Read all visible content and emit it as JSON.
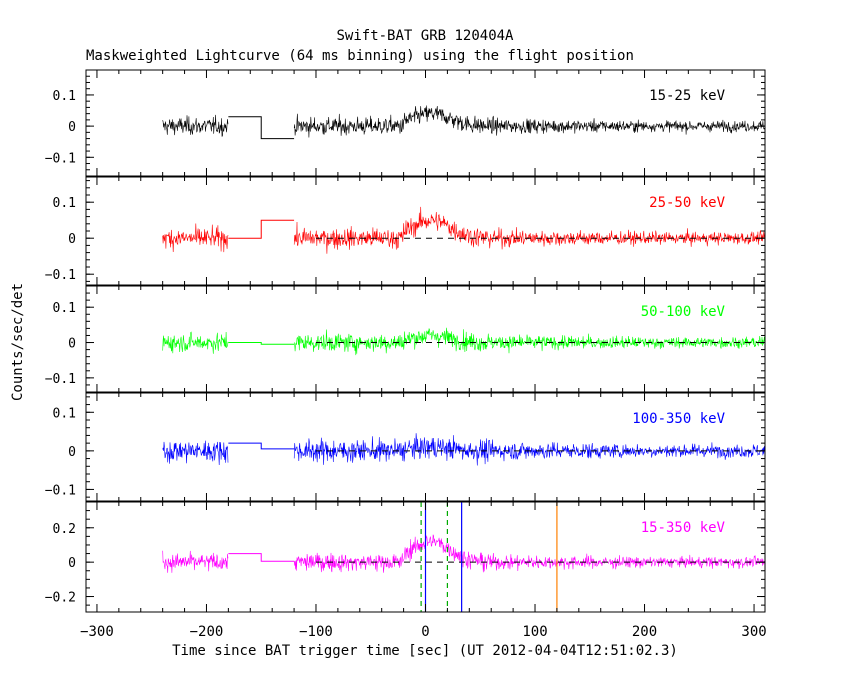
{
  "chart_data": {
    "type": "line",
    "title": "Swift-BAT GRB 120404A",
    "subtitle": "Maskweighted Lightcurve (64 ms binning) using the flight position",
    "xlabel": "Time since BAT trigger time [sec] (UT 2012-04-04T12:51:02.3)",
    "ylabel": "Counts/sec/det",
    "xlim": [
      -310,
      310
    ],
    "x_ticks": [
      -300,
      -200,
      -100,
      0,
      100,
      200,
      300
    ],
    "binning_sec": 0.064,
    "data_gap": [
      -180,
      -120
    ],
    "panels": [
      {
        "name": "15-25 keV",
        "color": "#000000",
        "ylim": [
          -0.16,
          0.18
        ],
        "yticks": [
          0.1,
          0,
          -0.1
        ],
        "yticklabels": [
          "0.1",
          "0",
          "−0.1"
        ],
        "noise_amplitude": 0.055,
        "pre_level": 0.0,
        "gap_levels": [
          0.03,
          -0.04
        ],
        "peak": 0.04,
        "show_zero_line": false
      },
      {
        "name": "25-50 keV",
        "color": "#ff0000",
        "ylim": [
          -0.13,
          0.17
        ],
        "yticks": [
          0.1,
          0,
          -0.1
        ],
        "yticklabels": [
          "0.1",
          "0",
          "−0.1"
        ],
        "noise_amplitude": 0.055,
        "pre_level": 0.0,
        "gap_levels": [
          0.0,
          0.05
        ],
        "peak": 0.05,
        "show_zero_line": true
      },
      {
        "name": "50-100 keV",
        "color": "#00ff00",
        "ylim": [
          -0.14,
          0.16
        ],
        "yticks": [
          0.1,
          0,
          -0.1
        ],
        "yticklabels": [
          "0.1",
          "0",
          "−0.1"
        ],
        "noise_amplitude": 0.05,
        "pre_level": 0.0,
        "gap_levels": [
          0.0,
          -0.005
        ],
        "peak": 0.02,
        "show_zero_line": true
      },
      {
        "name": "100-350 keV",
        "color": "#0000ff",
        "ylim": [
          -0.13,
          0.15
        ],
        "yticks": [
          0.1,
          0,
          -0.1
        ],
        "yticklabels": [
          "0.1",
          "0",
          "−0.1"
        ],
        "noise_amplitude": 0.055,
        "pre_level": 0.0,
        "gap_levels": [
          0.02,
          0.005
        ],
        "peak": 0.01,
        "show_zero_line": true
      },
      {
        "name": "15-350 keV",
        "color": "#ff00ff",
        "ylim": [
          -0.29,
          0.35
        ],
        "yticks": [
          0.2,
          0,
          -0.2
        ],
        "yticklabels": [
          "0.2",
          "0",
          "−0.2"
        ],
        "noise_amplitude": 0.1,
        "pre_level": 0.0,
        "gap_levels": [
          0.05,
          0.005
        ],
        "peak": 0.12,
        "show_zero_line": true
      }
    ],
    "markers": [
      {
        "x": -4,
        "color": "#00aa00",
        "style": "dashed"
      },
      {
        "x": 20,
        "color": "#00aa00",
        "style": "dashed"
      },
      {
        "x": 0,
        "color": "#0000ff",
        "style": "solid"
      },
      {
        "x": 33,
        "color": "#0000ff",
        "style": "solid"
      },
      {
        "x": 120,
        "color": "#ff8000",
        "style": "solid"
      }
    ]
  }
}
